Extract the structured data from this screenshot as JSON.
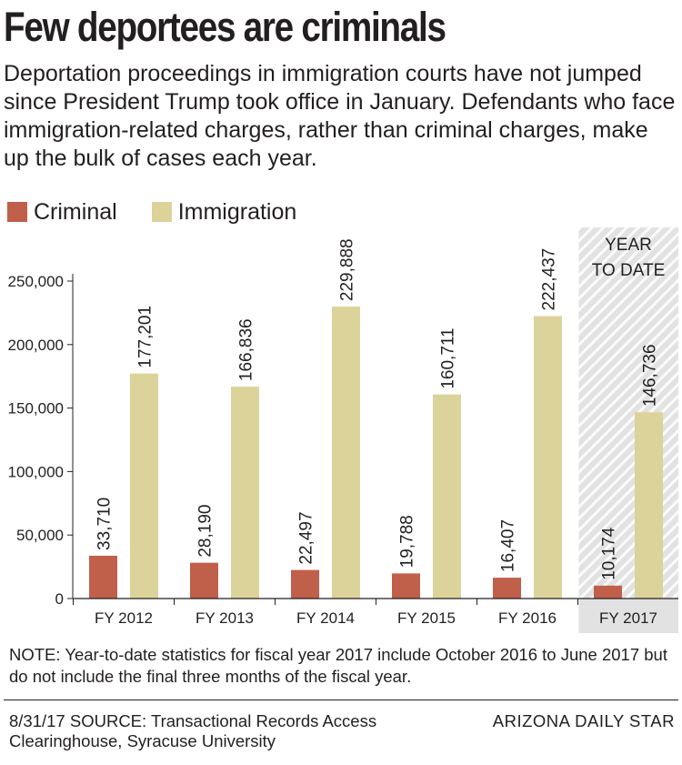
{
  "title": "Few deportees are criminals",
  "subtitle": "Deportation proceedings in immigration courts have not jumped since President Trump took office in January. Defendants who face immigration-related charges, rather than criminal charges, make up the bulk of cases each year.",
  "legend": [
    {
      "label": "Criminal",
      "color": "#c0604a"
    },
    {
      "label": "Immigration",
      "color": "#dcd39a"
    }
  ],
  "note": "NOTE: Year-to-date statistics for fiscal year 2017 include October 2016 to June 2017 but do not include the final three months of the fiscal year.",
  "source": "8/31/17  SOURCE: Transactional Records Access Clearinghouse, Syracuse University",
  "credit": "ARIZONA DAILY STAR",
  "chart_data": {
    "type": "bar",
    "categories": [
      "FY 2012",
      "FY 2013",
      "FY 2014",
      "FY 2015",
      "FY 2016",
      "FY 2017"
    ],
    "series": [
      {
        "name": "Criminal",
        "values": [
          33710,
          28190,
          22497,
          19788,
          16407,
          10174
        ],
        "labels": [
          "33,710",
          "28,190",
          "22,497",
          "19,788",
          "16,407",
          "10,174"
        ],
        "color": "#c0604a"
      },
      {
        "name": "Immigration",
        "values": [
          177201,
          166836,
          229888,
          160711,
          222437,
          146736
        ],
        "labels": [
          "177,201",
          "166,836",
          "229,888",
          "160,711",
          "222,437",
          "146,736"
        ],
        "color": "#dcd39a"
      }
    ],
    "ylim": [
      0,
      250000
    ],
    "yticks": [
      0,
      50000,
      100000,
      150000,
      200000,
      250000
    ],
    "ytick_labels": [
      "0",
      "50,000",
      "100,000",
      "150,000",
      "200,000",
      "250,000"
    ],
    "grid": false,
    "legend_position": "top-left",
    "highlight": {
      "category": "FY 2017",
      "label_line1": "YEAR",
      "label_line2": "TO DATE",
      "color": "#e2e2e2"
    }
  }
}
